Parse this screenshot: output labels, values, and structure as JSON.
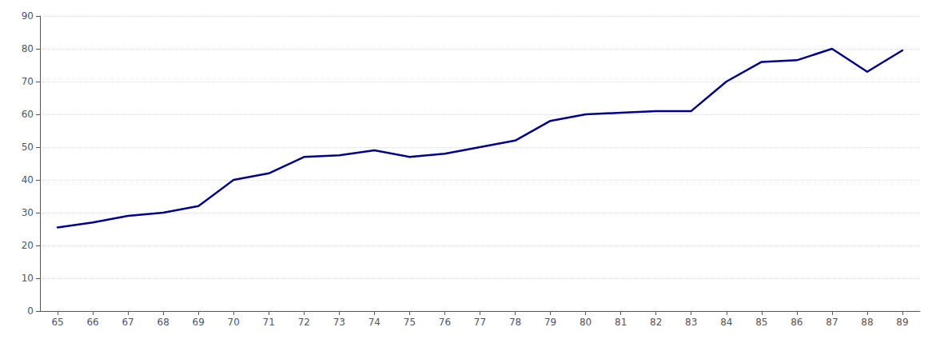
{
  "chart_data": {
    "type": "line",
    "x": [
      65,
      66,
      67,
      68,
      69,
      70,
      71,
      72,
      73,
      74,
      75,
      76,
      77,
      78,
      79,
      80,
      81,
      82,
      83,
      84,
      85,
      86,
      87,
      88,
      89
    ],
    "values": [
      25.5,
      27,
      29,
      30,
      32,
      40,
      42,
      47,
      47.5,
      49,
      47,
      48,
      50,
      52,
      58,
      60,
      60.5,
      61,
      61,
      70,
      76,
      76.5,
      80,
      73,
      79.5
    ],
    "color": "#00008B",
    "xlim": [
      64.5,
      89.5
    ],
    "xticks": [
      65,
      66,
      67,
      68,
      69,
      70,
      71,
      72,
      73,
      74,
      75,
      76,
      77,
      78,
      79,
      80,
      81,
      82,
      83,
      84,
      85,
      86,
      87,
      88,
      89
    ],
    "ylim": [
      0,
      90
    ],
    "yticks": [
      0,
      10,
      20,
      30,
      40,
      50,
      60,
      70,
      80,
      90
    ],
    "grid": true
  }
}
